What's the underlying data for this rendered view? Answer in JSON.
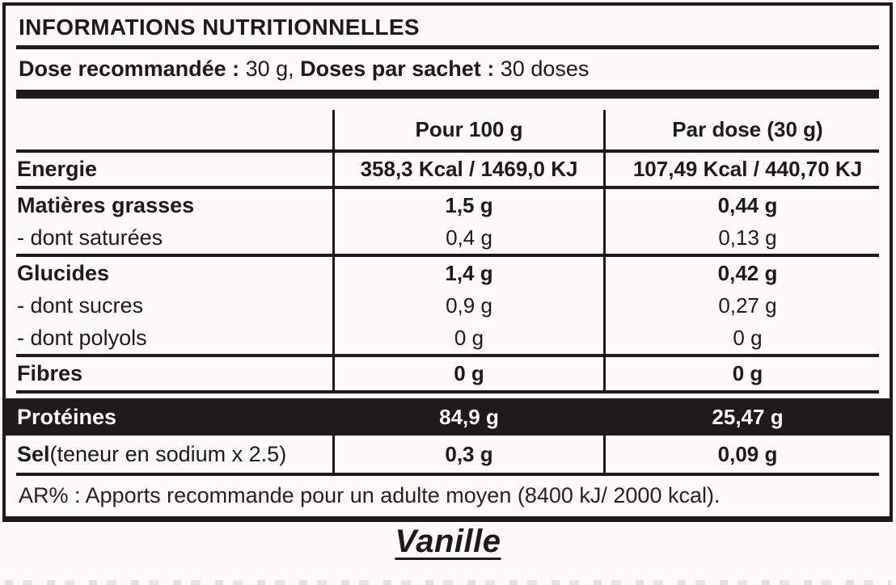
{
  "colors": {
    "ink": "#1d1b18",
    "paper": "#fcfbf7",
    "inverted_text": "#ffffff"
  },
  "nutrition_panel": {
    "title": "INFORMATIONS NUTRITIONNELLES",
    "serving_info": {
      "dose_label": "Dose recommandée :",
      "dose_value": " 30 g, ",
      "servings_label": "Doses par sachet :",
      "servings_value": " 30 doses"
    },
    "table": {
      "col_per100_header": "Pour 100 g",
      "col_perdose_header": "Par dose (30 g)",
      "rows": [
        {
          "label": "Energie",
          "per_100g": "358,3 Kcal / 1469,0 KJ",
          "per_dose": "107,49 Kcal / 440,70 KJ"
        },
        {
          "label": "Matières grasses",
          "per_100g": "1,5 g",
          "per_dose": "0,44 g"
        },
        {
          "label": "- dont saturées",
          "per_100g": "0,4 g",
          "per_dose": "0,13 g"
        },
        {
          "label": "Glucides",
          "per_100g": "1,4 g",
          "per_dose": "0,42 g"
        },
        {
          "label": "- dont sucres",
          "per_100g": "0,9 g",
          "per_dose": "0,27 g"
        },
        {
          "label": "- dont polyols",
          "per_100g": "0 g",
          "per_dose": "0 g"
        },
        {
          "label": "Fibres",
          "per_100g": "0 g",
          "per_dose": "0 g"
        },
        {
          "label": "Protéines",
          "per_100g": "84,9 g",
          "per_dose": "25,47 g"
        },
        {
          "label": "Sel",
          "label_note": " (teneur en sodium x 2.5)",
          "per_100g": "0,3 g",
          "per_dose": "0,09 g"
        }
      ]
    },
    "footnote": "AR% : Apports recommande pour un adulte moyen (8400 kJ/ 2000 kcal)."
  },
  "flavor_label": "Vanille"
}
